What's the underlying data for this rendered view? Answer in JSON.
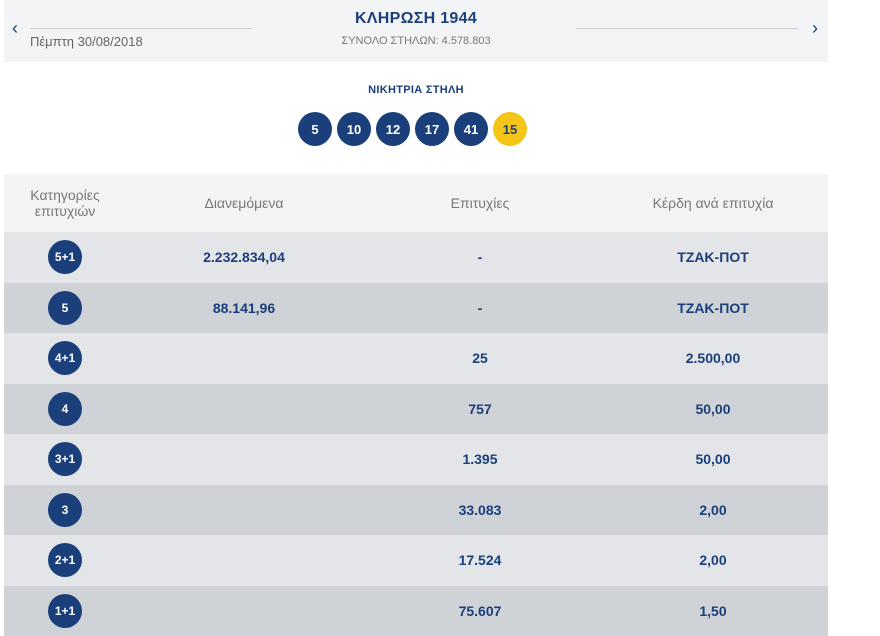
{
  "draw": {
    "prev_icon": "chevron-left-icon",
    "next_icon": "chevron-right-icon",
    "prev_glyph": "‹",
    "next_glyph": "›",
    "date": "Πέμπτη 30/08/2018",
    "title": "ΚΛΗΡΩΣΗ 1944",
    "subtitle": "ΣΥΝΟΛΟ ΣΤΗΛΩΝ: 4.578.803"
  },
  "winning": {
    "label": "ΝΙΚΗΤΡΙΑ ΣΤΗΛΗ",
    "numbers": [
      "5",
      "10",
      "12",
      "17",
      "41"
    ],
    "bonus": "15"
  },
  "table": {
    "headers": {
      "category": "Κατηγορίες επιτυχιών",
      "distributed": "Διανεμόμενα",
      "winners": "Επιτυχίες",
      "prize": "Κέρδη ανά επιτυχία"
    },
    "rows": [
      {
        "category": "5+1",
        "distributed": "2.232.834,04",
        "winners": "-",
        "prize": "ΤΖΑΚ-ΠΟΤ"
      },
      {
        "category": "5",
        "distributed": "88.141,96",
        "winners": "-",
        "prize": "ΤΖΑΚ-ΠΟΤ"
      },
      {
        "category": "4+1",
        "distributed": "",
        "winners": "25",
        "prize": "2.500,00"
      },
      {
        "category": "4",
        "distributed": "",
        "winners": "757",
        "prize": "50,00"
      },
      {
        "category": "3+1",
        "distributed": "",
        "winners": "1.395",
        "prize": "50,00"
      },
      {
        "category": "3",
        "distributed": "",
        "winners": "33.083",
        "prize": "2,00"
      },
      {
        "category": "2+1",
        "distributed": "",
        "winners": "17.524",
        "prize": "2,00"
      },
      {
        "category": "1+1",
        "distributed": "",
        "winners": "75.607",
        "prize": "1,50"
      }
    ]
  },
  "colors": {
    "primary": "#1a3f7a",
    "bonus": "#f5c518",
    "row_light": "#e3e5e8",
    "row_dark": "#cfd2d6",
    "header_bg": "#f3f4f6"
  }
}
